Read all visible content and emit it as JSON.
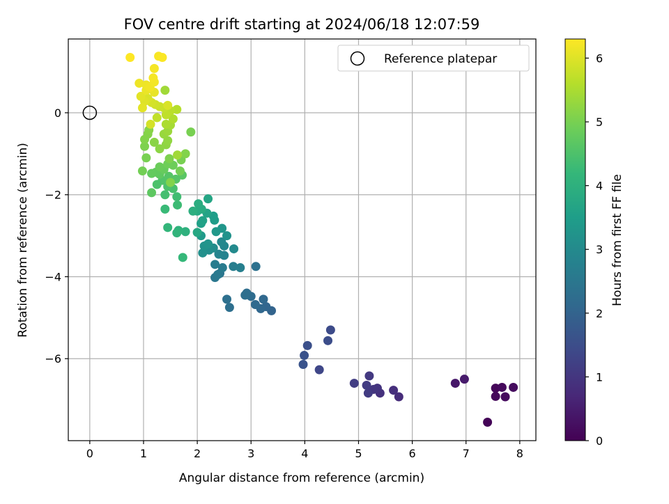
{
  "chart_data": {
    "type": "scatter",
    "title": "FOV centre drift starting at 2024/06/18 12:07:59",
    "xlabel": "Angular distance from reference (arcmin)",
    "ylabel": "Rotation from reference (arcmin)",
    "xlim": [
      -0.4,
      8.3
    ],
    "ylim": [
      -8.0,
      1.8
    ],
    "xticks": [
      0,
      1,
      2,
      3,
      4,
      5,
      6,
      7,
      8
    ],
    "yticks": [
      -6,
      -4,
      -2,
      0
    ],
    "grid": true,
    "legend": {
      "position": "top-right",
      "entries": [
        "Reference platepar"
      ]
    },
    "reference_point": {
      "x": 0,
      "y": 0,
      "label": "Reference platepar"
    },
    "colorbar": {
      "label": "Hours from first FF file",
      "min": 0,
      "max": 6.3,
      "ticks": [
        0,
        1,
        2,
        3,
        4,
        5,
        6
      ],
      "colormap": "viridis",
      "colormap_colors": [
        "#440154",
        "#482878",
        "#3e4989",
        "#31688e",
        "#26828e",
        "#1f9e89",
        "#35b779",
        "#6ece58",
        "#b5de2b",
        "#fde725"
      ]
    },
    "points": [
      {
        "x": 7.4,
        "y": -7.55,
        "h": 0.05
      },
      {
        "x": 7.55,
        "y": -6.72,
        "h": 0.1
      },
      {
        "x": 7.55,
        "y": -6.92,
        "h": 0.12
      },
      {
        "x": 7.67,
        "y": -6.7,
        "h": 0.15
      },
      {
        "x": 7.73,
        "y": -6.93,
        "h": 0.17
      },
      {
        "x": 7.88,
        "y": -6.7,
        "h": 0.2
      },
      {
        "x": 6.8,
        "y": -6.6,
        "h": 0.4
      },
      {
        "x": 6.97,
        "y": -6.5,
        "h": 0.45
      },
      {
        "x": 5.75,
        "y": -6.93,
        "h": 0.8
      },
      {
        "x": 5.65,
        "y": -6.77,
        "h": 0.85
      },
      {
        "x": 5.4,
        "y": -6.84,
        "h": 0.9
      },
      {
        "x": 5.35,
        "y": -6.72,
        "h": 0.95
      },
      {
        "x": 5.28,
        "y": -6.75,
        "h": 1.0
      },
      {
        "x": 5.2,
        "y": -6.42,
        "h": 1.05
      },
      {
        "x": 5.18,
        "y": -6.84,
        "h": 1.1
      },
      {
        "x": 5.15,
        "y": -6.65,
        "h": 1.12
      },
      {
        "x": 4.92,
        "y": -6.6,
        "h": 1.15
      },
      {
        "x": 4.27,
        "y": -6.27,
        "h": 1.35
      },
      {
        "x": 4.48,
        "y": -5.3,
        "h": 1.45
      },
      {
        "x": 4.43,
        "y": -5.56,
        "h": 1.5
      },
      {
        "x": 4.05,
        "y": -5.68,
        "h": 1.55
      },
      {
        "x": 3.99,
        "y": -5.92,
        "h": 1.6
      },
      {
        "x": 3.97,
        "y": -6.14,
        "h": 1.62
      },
      {
        "x": 3.38,
        "y": -4.83,
        "h": 2.0
      },
      {
        "x": 3.28,
        "y": -4.73,
        "h": 2.05
      },
      {
        "x": 3.18,
        "y": -4.78,
        "h": 2.1
      },
      {
        "x": 3.23,
        "y": -4.55,
        "h": 2.12
      },
      {
        "x": 3.08,
        "y": -4.68,
        "h": 2.15
      },
      {
        "x": 3.0,
        "y": -4.48,
        "h": 2.2
      },
      {
        "x": 2.92,
        "y": -4.4,
        "h": 2.25
      },
      {
        "x": 2.89,
        "y": -4.45,
        "h": 2.28
      },
      {
        "x": 3.09,
        "y": -3.75,
        "h": 2.35
      },
      {
        "x": 2.6,
        "y": -4.75,
        "h": 2.3
      },
      {
        "x": 2.55,
        "y": -4.55,
        "h": 2.32
      },
      {
        "x": 2.42,
        "y": -3.92,
        "h": 2.45
      },
      {
        "x": 2.33,
        "y": -4.02,
        "h": 2.5
      },
      {
        "x": 2.38,
        "y": -3.95,
        "h": 2.55
      },
      {
        "x": 2.47,
        "y": -3.78,
        "h": 2.6
      },
      {
        "x": 2.33,
        "y": -3.7,
        "h": 2.65
      },
      {
        "x": 2.67,
        "y": -3.75,
        "h": 2.7
      },
      {
        "x": 2.8,
        "y": -3.78,
        "h": 2.72
      },
      {
        "x": 2.5,
        "y": -3.48,
        "h": 2.8
      },
      {
        "x": 2.4,
        "y": -3.45,
        "h": 2.85
      },
      {
        "x": 2.5,
        "y": -3.25,
        "h": 2.9
      },
      {
        "x": 2.45,
        "y": -3.15,
        "h": 2.95
      },
      {
        "x": 2.68,
        "y": -3.32,
        "h": 3.0
      },
      {
        "x": 2.3,
        "y": -3.3,
        "h": 3.05
      },
      {
        "x": 2.22,
        "y": -3.35,
        "h": 3.1
      },
      {
        "x": 2.1,
        "y": -3.42,
        "h": 3.15
      },
      {
        "x": 2.13,
        "y": -3.25,
        "h": 3.2
      },
      {
        "x": 2.2,
        "y": -3.2,
        "h": 3.25
      },
      {
        "x": 2.55,
        "y": -3.0,
        "h": 3.2
      },
      {
        "x": 2.46,
        "y": -2.82,
        "h": 3.3
      },
      {
        "x": 2.35,
        "y": -2.9,
        "h": 3.35
      },
      {
        "x": 2.07,
        "y": -3.0,
        "h": 3.4
      },
      {
        "x": 2.32,
        "y": -2.62,
        "h": 3.45
      },
      {
        "x": 2.3,
        "y": -2.52,
        "h": 3.5
      },
      {
        "x": 2.07,
        "y": -2.7,
        "h": 3.55
      },
      {
        "x": 2.1,
        "y": -2.63,
        "h": 3.6
      },
      {
        "x": 2.18,
        "y": -2.45,
        "h": 3.65
      },
      {
        "x": 2.2,
        "y": -2.1,
        "h": 3.7
      },
      {
        "x": 2.0,
        "y": -2.92,
        "h": 3.75
      },
      {
        "x": 2.0,
        "y": -2.4,
        "h": 3.8
      },
      {
        "x": 2.08,
        "y": -2.35,
        "h": 3.85
      },
      {
        "x": 2.02,
        "y": -2.22,
        "h": 3.9
      },
      {
        "x": 1.92,
        "y": -2.4,
        "h": 3.95
      },
      {
        "x": 1.78,
        "y": -2.9,
        "h": 4.0
      },
      {
        "x": 1.65,
        "y": -2.87,
        "h": 4.05
      },
      {
        "x": 1.62,
        "y": -2.93,
        "h": 4.1
      },
      {
        "x": 1.73,
        "y": -3.53,
        "h": 4.2
      },
      {
        "x": 1.45,
        "y": -2.8,
        "h": 4.15
      },
      {
        "x": 1.4,
        "y": -2.35,
        "h": 4.25
      },
      {
        "x": 1.63,
        "y": -2.25,
        "h": 4.3
      },
      {
        "x": 1.62,
        "y": -2.05,
        "h": 4.35
      },
      {
        "x": 1.4,
        "y": -2.0,
        "h": 4.4
      },
      {
        "x": 1.55,
        "y": -1.85,
        "h": 4.45
      },
      {
        "x": 1.45,
        "y": -1.8,
        "h": 4.5
      },
      {
        "x": 1.35,
        "y": -1.65,
        "h": 4.55
      },
      {
        "x": 1.47,
        "y": -1.55,
        "h": 4.6
      },
      {
        "x": 1.72,
        "y": -1.52,
        "h": 4.65
      },
      {
        "x": 1.25,
        "y": -1.75,
        "h": 4.5
      },
      {
        "x": 1.15,
        "y": -1.95,
        "h": 4.7
      },
      {
        "x": 1.3,
        "y": -1.5,
        "h": 4.72
      },
      {
        "x": 1.23,
        "y": -1.45,
        "h": 4.75
      },
      {
        "x": 1.15,
        "y": -1.48,
        "h": 4.78
      },
      {
        "x": 1.38,
        "y": -1.38,
        "h": 4.8
      },
      {
        "x": 1.3,
        "y": -1.32,
        "h": 4.85
      },
      {
        "x": 1.55,
        "y": -1.28,
        "h": 4.88
      },
      {
        "x": 1.45,
        "y": -1.25,
        "h": 4.9
      },
      {
        "x": 1.68,
        "y": -1.42,
        "h": 4.95
      },
      {
        "x": 1.7,
        "y": -1.15,
        "h": 5.0
      },
      {
        "x": 1.48,
        "y": -1.12,
        "h": 5.05
      },
      {
        "x": 1.6,
        "y": -1.62,
        "h": 4.6
      },
      {
        "x": 1.5,
        "y": -1.7,
        "h": 5.1
      },
      {
        "x": 0.98,
        "y": -1.42,
        "h": 4.95
      },
      {
        "x": 1.05,
        "y": -1.1,
        "h": 5.0
      },
      {
        "x": 1.02,
        "y": -0.82,
        "h": 5.05
      },
      {
        "x": 1.02,
        "y": -0.65,
        "h": 5.1
      },
      {
        "x": 1.08,
        "y": -0.52,
        "h": 5.12
      },
      {
        "x": 1.1,
        "y": -0.42,
        "h": 5.15
      },
      {
        "x": 1.2,
        "y": -0.72,
        "h": 5.18
      },
      {
        "x": 1.3,
        "y": -0.88,
        "h": 5.2
      },
      {
        "x": 1.42,
        "y": -0.78,
        "h": 5.22
      },
      {
        "x": 1.45,
        "y": -0.68,
        "h": 5.25
      },
      {
        "x": 1.38,
        "y": -0.52,
        "h": 5.3
      },
      {
        "x": 1.45,
        "y": -0.45,
        "h": 5.35
      },
      {
        "x": 1.78,
        "y": -1.0,
        "h": 5.1
      },
      {
        "x": 1.63,
        "y": -1.03,
        "h": 5.4
      },
      {
        "x": 1.88,
        "y": -0.47,
        "h": 5.0
      },
      {
        "x": 1.5,
        "y": -0.3,
        "h": 5.45
      },
      {
        "x": 1.42,
        "y": -0.28,
        "h": 5.5
      },
      {
        "x": 1.55,
        "y": -0.15,
        "h": 5.55
      },
      {
        "x": 1.62,
        "y": 0.08,
        "h": 5.6
      },
      {
        "x": 1.5,
        "y": 0.05,
        "h": 5.65
      },
      {
        "x": 1.42,
        "y": -0.05,
        "h": 5.7
      },
      {
        "x": 1.25,
        "y": -0.12,
        "h": 5.72
      },
      {
        "x": 1.13,
        "y": -0.28,
        "h": 5.9
      },
      {
        "x": 1.4,
        "y": 0.55,
        "h": 5.4
      },
      {
        "x": 1.38,
        "y": 0.12,
        "h": 5.75
      },
      {
        "x": 1.3,
        "y": 0.15,
        "h": 5.8
      },
      {
        "x": 1.22,
        "y": 0.2,
        "h": 5.85
      },
      {
        "x": 1.15,
        "y": 0.25,
        "h": 5.9
      },
      {
        "x": 1.08,
        "y": 0.35,
        "h": 5.95
      },
      {
        "x": 1.02,
        "y": 0.28,
        "h": 6.0
      },
      {
        "x": 0.98,
        "y": 0.12,
        "h": 6.05
      },
      {
        "x": 0.95,
        "y": 0.4,
        "h": 6.05
      },
      {
        "x": 1.2,
        "y": 0.5,
        "h": 6.1
      },
      {
        "x": 1.05,
        "y": 0.55,
        "h": 6.12
      },
      {
        "x": 0.92,
        "y": 0.72,
        "h": 6.15
      },
      {
        "x": 1.05,
        "y": 0.68,
        "h": 6.15
      },
      {
        "x": 1.12,
        "y": 0.62,
        "h": 6.18
      },
      {
        "x": 1.2,
        "y": 0.75,
        "h": 6.2
      },
      {
        "x": 1.18,
        "y": 0.85,
        "h": 6.22
      },
      {
        "x": 1.2,
        "y": 1.08,
        "h": 6.22
      },
      {
        "x": 1.28,
        "y": 1.38,
        "h": 6.25
      },
      {
        "x": 1.35,
        "y": 1.35,
        "h": 6.27
      },
      {
        "x": 0.75,
        "y": 1.35,
        "h": 6.3
      },
      {
        "x": 1.45,
        "y": 0.18,
        "h": 5.95
      }
    ]
  }
}
